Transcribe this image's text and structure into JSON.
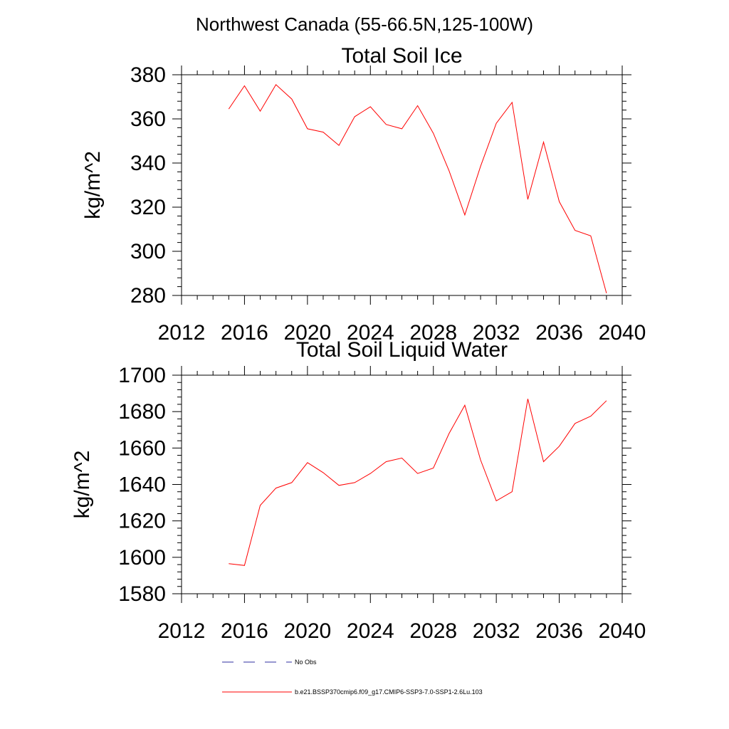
{
  "figure_title": "Northwest Canada (55-66.5N,125-100W)",
  "line_color": "#ff0000",
  "obs_color": "#2f2fa0",
  "chart_data": [
    {
      "type": "line",
      "title": "Total Soil Ice",
      "ylabel": "kg/m^2",
      "xlim": [
        2012,
        2040
      ],
      "ylim": [
        280,
        380
      ],
      "xticks": [
        2012,
        2016,
        2020,
        2024,
        2028,
        2032,
        2036,
        2040
      ],
      "yticks": [
        280,
        300,
        320,
        340,
        360,
        380
      ],
      "series": [
        {
          "name": "b.e21.BSSP370cmip6.f09_g17.CMIP6-SSP3-7.0-SSP1-2.6Lu.103",
          "x": [
            2015,
            2016,
            2017,
            2018,
            2019,
            2020,
            2021,
            2022,
            2023,
            2024,
            2025,
            2026,
            2027,
            2028,
            2029,
            2030,
            2031,
            2032,
            2033,
            2034,
            2035,
            2036,
            2037,
            2038,
            2039
          ],
          "values": [
            364.5,
            375,
            363.5,
            375.5,
            369,
            355.5,
            354,
            348,
            361,
            365.5,
            357.5,
            355.5,
            366,
            353.5,
            336.5,
            316.5,
            338.5,
            358,
            367.5,
            323.5,
            349.5,
            322.5,
            309.5,
            307,
            281
          ]
        }
      ]
    },
    {
      "type": "line",
      "title": "Total Soil Liquid Water",
      "ylabel": "kg/m^2",
      "xlim": [
        2012,
        2040
      ],
      "ylim": [
        1580,
        1700
      ],
      "xticks": [
        2012,
        2016,
        2020,
        2024,
        2028,
        2032,
        2036,
        2040
      ],
      "yticks": [
        1580,
        1600,
        1620,
        1640,
        1660,
        1680,
        1700
      ],
      "series": [
        {
          "name": "b.e21.BSSP370cmip6.f09_g17.CMIP6-SSP3-7.0-SSP1-2.6Lu.103",
          "x": [
            2015,
            2016,
            2017,
            2018,
            2019,
            2020,
            2021,
            2022,
            2023,
            2024,
            2025,
            2026,
            2027,
            2028,
            2029,
            2030,
            2031,
            2032,
            2033,
            2034,
            2035,
            2036,
            2037,
            2038,
            2039
          ],
          "values": [
            1596.5,
            1595.5,
            1628.5,
            1638,
            1641,
            1652,
            1646.5,
            1639.5,
            1641,
            1646,
            1652.5,
            1654.5,
            1646,
            1649,
            1668,
            1683.5,
            1653.5,
            1631,
            1636,
            1687,
            1652.5,
            1661,
            1673.5,
            1677.5,
            1686
          ]
        }
      ]
    }
  ],
  "legend": [
    {
      "label": "No Obs",
      "style": "dashed"
    },
    {
      "label": "b.e21.BSSP370cmip6.f09_g17.CMIP6-SSP3-7.0-SSP1-2.6Lu.103",
      "style": "solid"
    }
  ]
}
